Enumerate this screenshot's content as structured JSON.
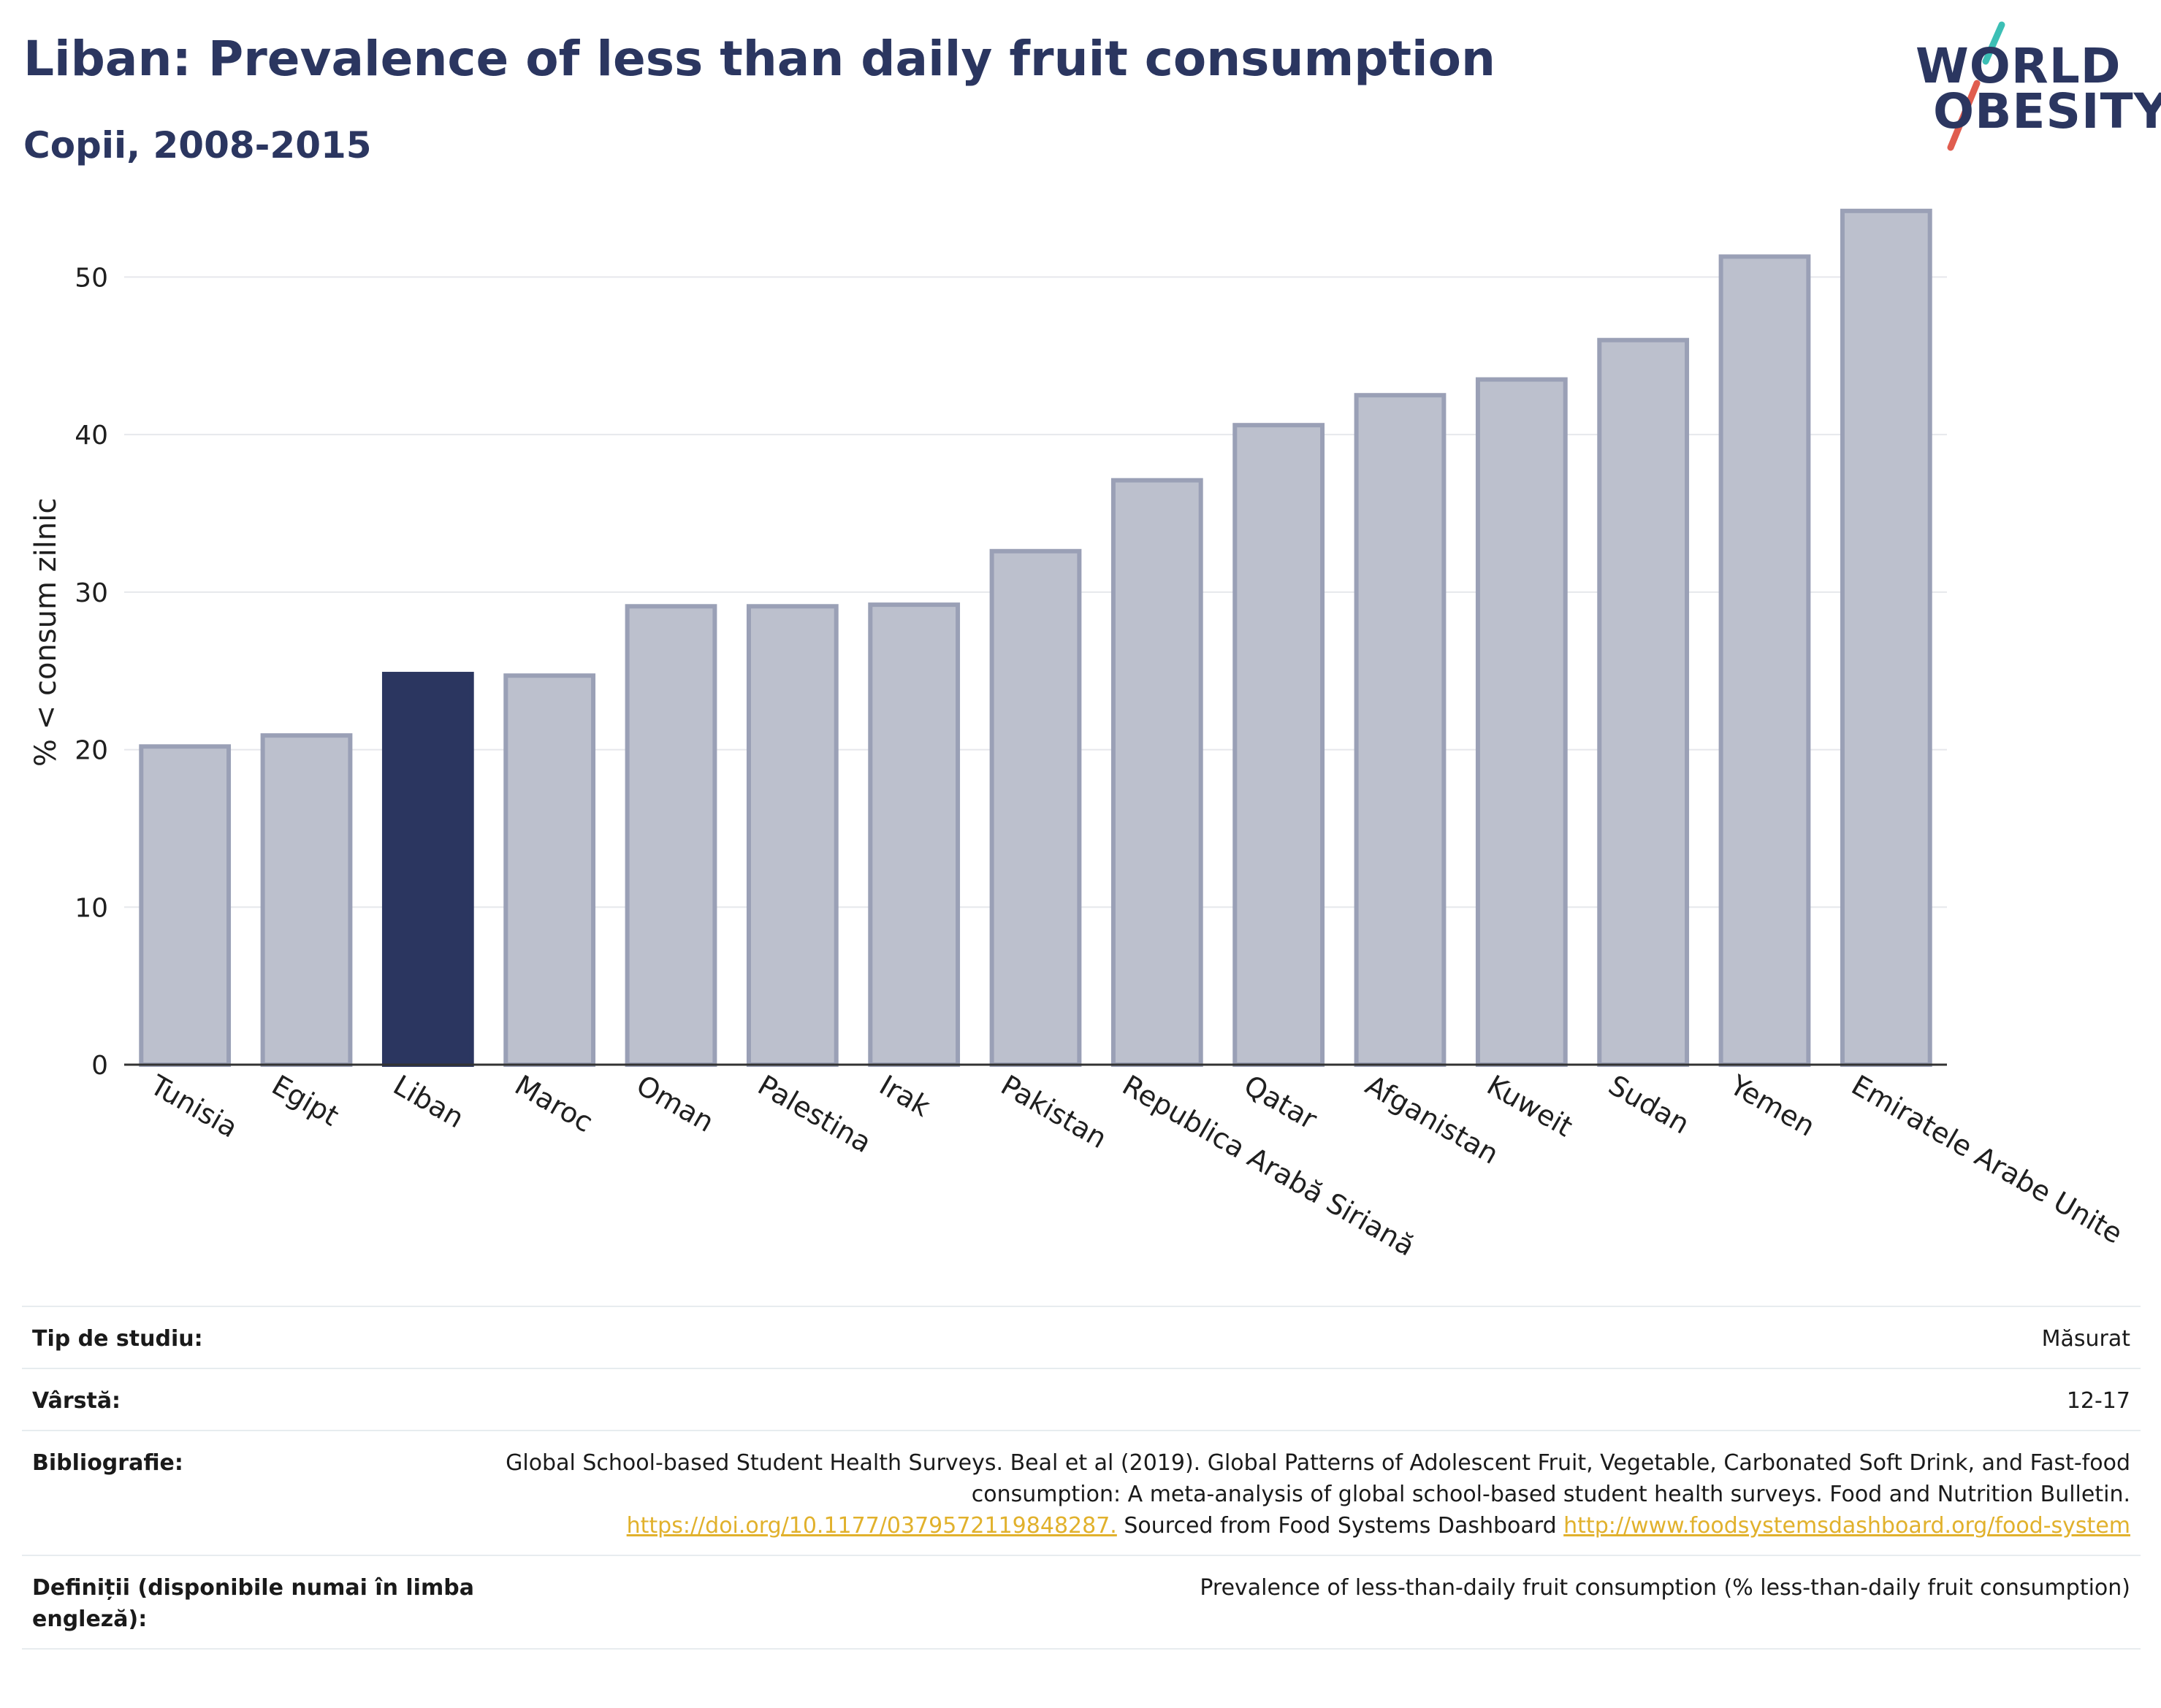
{
  "header": {
    "title": "Liban: Prevalence of less than daily fruit consumption",
    "subtitle": "Copii, 2008-2015",
    "logo_line1": "WORLD",
    "logo_line2": "OBESITY"
  },
  "colors": {
    "title": "#2b3660",
    "bar": "#bcc0cd",
    "bar_border": "#9aa0b6",
    "bar_highlight": "#2b3660",
    "grid": "#e6e8ec",
    "link": "#e1b12c",
    "logo_teal": "#3cbfb5",
    "logo_red": "#e05d4f"
  },
  "chart_data": {
    "type": "bar",
    "title": "Liban: Prevalence of less than daily fruit consumption",
    "subtitle": "Copii, 2008-2015",
    "ylabel": "% < consum zilnic",
    "xlabel": "",
    "ylim": [
      0,
      56
    ],
    "yticks": [
      0,
      10,
      20,
      30,
      40,
      50
    ],
    "grid": true,
    "highlight": "Liban",
    "categories": [
      "Tunisia",
      "Egipt",
      "Liban",
      "Maroc",
      "Oman",
      "Palestina",
      "Irak",
      "Pakistan",
      "Republica Arabă Siriană",
      "Qatar",
      "Afganistan",
      "Kuweit",
      "Sudan",
      "Yemen",
      "Emiratele Arabe Unite"
    ],
    "values": [
      20.2,
      20.9,
      24.8,
      24.7,
      29.1,
      29.1,
      29.2,
      32.6,
      37.1,
      40.6,
      42.5,
      43.5,
      46.0,
      51.3,
      54.2
    ]
  },
  "meta": [
    {
      "label": "Tip de studiu:",
      "value": "Măsurat"
    },
    {
      "label": "Vârstă:",
      "value": "12-17"
    },
    {
      "label": "Bibliografie:",
      "value_text": "Global School-based Student Health Surveys. Beal et al (2019). Global Patterns of Adolescent Fruit, Vegetable, Carbonated Soft Drink, and Fast-food consumption: A meta-analysis of global school-based student health surveys. Food and Nutrition Bulletin. ",
      "link1": "https://doi.org/10.1177/0379572119848287.",
      "mid_text": " Sourced from Food Systems Dashboard ",
      "link2": "http://www.foodsystemsdashboard.org/food-system"
    },
    {
      "label": "Definiții (disponibile numai în limba engleză):",
      "value": "Prevalence of less-than-daily fruit consumption (% less-than-daily fruit consumption)"
    }
  ]
}
